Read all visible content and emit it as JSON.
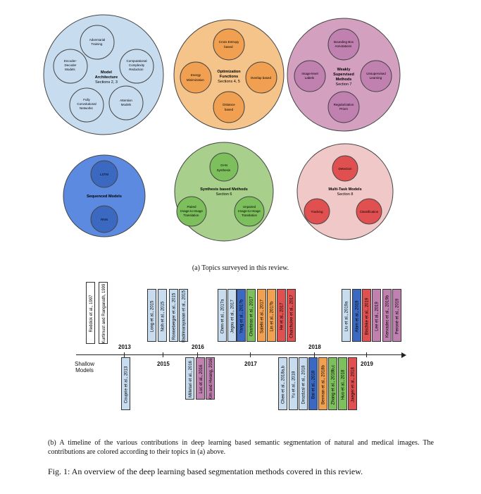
{
  "figure_a": {
    "caption": "(a) Topics surveyed in this review.",
    "groups": [
      {
        "title": "Model Architecture",
        "section": "Sections 2, 3",
        "items": [
          "Adversarial Training",
          "Encoder-Decoder Models",
          "Computational Complexity Reduction",
          "Fully Convolutional Networks",
          "Attention Models"
        ],
        "color": "#c8dcf0"
      },
      {
        "title": "Optimization Functions",
        "section": "Sections 4, 5",
        "items": [
          "Cross Entropy based",
          "Energy Minimization",
          "Overlap based",
          "Distance based"
        ],
        "color": "#f5c48a"
      },
      {
        "title": "Weakly Supervised Methods",
        "section": "Section 7",
        "items": [
          "Bounding Box Annotations",
          "Image-level Labels",
          "Unsupervised Learning",
          "Regularization Priors"
        ],
        "color": "#d4a0c0"
      },
      {
        "title": "Sequenced Models",
        "section": "",
        "items": [
          "LSTM",
          "RNN"
        ],
        "color": "#5c8ae0"
      },
      {
        "title": "Synthesis based Methods",
        "section": "Section 6",
        "items": [
          "GAN Synthesis",
          "Paired Image-to-Image Translation",
          "Unpaired Image-to-Image Translation"
        ],
        "color": "#a8d08c"
      },
      {
        "title": "Multi-Task Models",
        "section": "Section 8",
        "items": [
          "Detection",
          "Tracking",
          "Classification"
        ],
        "color": "#f0c8c8"
      }
    ]
  },
  "figure_b": {
    "caption": "(b) A timeline of the various contributions in deep learning based semantic segmentation of natural and medical images. The contributions are colored according to their topics in (a) above.",
    "shallow_label": "Shallow Models",
    "years": [
      "2013",
      "2015",
      "2016",
      "2017",
      "2018",
      "2019"
    ],
    "above": [
      {
        "label": "Reddick et al., 1997",
        "color": "#ffffff"
      },
      {
        "label": "Kurtlmust and Ranganath, 1999",
        "color": "#ffffff"
      },
      {
        "label": "Long et al., 2015",
        "color": "#c8dcf0"
      },
      {
        "label": "Noh et al., 2015",
        "color": "#c8dcf0"
      },
      {
        "label": "Ronneberger et al., 2015",
        "color": "#c8dcf0"
      },
      {
        "label": "Badrinarayanan et al., 2015",
        "color": "#c8dcf0"
      },
      {
        "label": "Chen et al., 2017a",
        "color": "#c8dcf0"
      },
      {
        "label": "Jegou et al., 2017",
        "color": "#c8dcf0"
      },
      {
        "label": "Yang et al., 2017b",
        "color": "#3b68c0"
      },
      {
        "label": "Chartsias et al., 2017",
        "color": "#7cbf5c"
      },
      {
        "label": "Salehi et al., 2017",
        "color": "#f0a050"
      },
      {
        "label": "Lin et al., 2017b",
        "color": "#f0a050"
      },
      {
        "label": "He et al., 2017",
        "color": "#e05050"
      },
      {
        "label": "Chaichulee et al., 2017",
        "color": "#e05050"
      },
      {
        "label": "Liu et al., 2019a",
        "color": "#c8dcf0"
      },
      {
        "label": "Alom et al., 2019",
        "color": "#3b68c0"
      },
      {
        "label": "Bischke et al., 2019",
        "color": "#e05050"
      },
      {
        "label": "Lee et al., 2019",
        "color": "#c080b0"
      },
      {
        "label": "Kervadec et al., 2019b",
        "color": "#c080b0"
      },
      {
        "label": "Peroné et al., 2019",
        "color": "#c080b0"
      }
    ],
    "below": [
      {
        "label": "Couprie et al., 2013",
        "color": "#c8dcf0"
      },
      {
        "label": "Milletari et al., 2016",
        "color": "#c8dcf0"
      },
      {
        "label": "Luc et al., 2016",
        "color": "#c080b0"
      },
      {
        "label": "Kim and Hwang, 2016",
        "color": "#c080b0"
      },
      {
        "label": "Chen et al., 2018a,b",
        "color": "#c8dcf0"
      },
      {
        "label": "Yu et al., 2018",
        "color": "#c8dcf0"
      },
      {
        "label": "Drozdzal et al., 2018",
        "color": "#c8dcf0"
      },
      {
        "label": "Bai et al., 2018",
        "color": "#3b68c0"
      },
      {
        "label": "Berman et al., 2018b",
        "color": "#f0a050"
      },
      {
        "label": "Zhang et al., 2018b,c",
        "color": "#7cbf5c"
      },
      {
        "label": "Huo et al., 2018",
        "color": "#7cbf5c"
      },
      {
        "label": "Jaeger et al., 2018",
        "color": "#e05050"
      }
    ]
  },
  "fig_caption": "Fig. 1: An overview of the deep learning based segmentation methods covered in this review."
}
